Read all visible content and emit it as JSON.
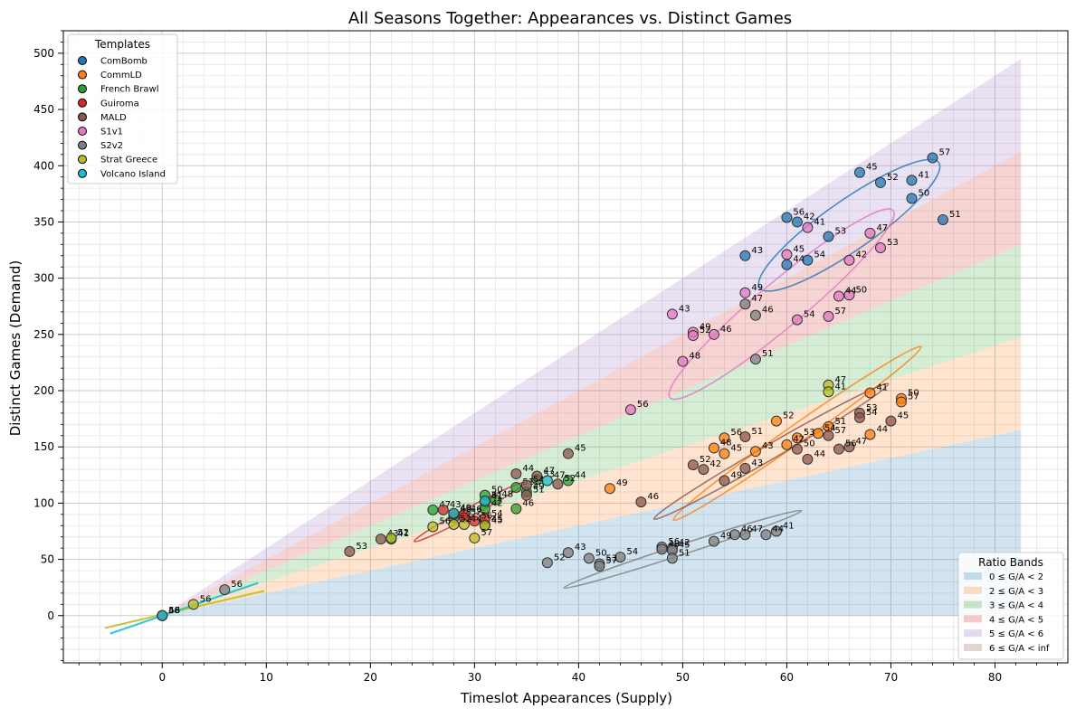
{
  "chart_data": {
    "type": "scatter",
    "title": "All Seasons Together: Appearances vs. Distinct Games",
    "xlabel": "Timeslot Appearances (Supply)",
    "ylabel": "Distinct Games (Demand)",
    "xlim": [
      -9.5,
      87
    ],
    "ylim": [
      -42,
      520
    ],
    "xticks": [
      0,
      10,
      20,
      30,
      40,
      50,
      60,
      70,
      80
    ],
    "yticks": [
      0,
      50,
      100,
      150,
      200,
      250,
      300,
      350,
      400,
      450,
      500
    ],
    "grid": true,
    "minor_grid": true,
    "legend_templates": {
      "title": "Templates",
      "placement": "top-left",
      "entries": [
        {
          "name": "ComBomb",
          "color": "#1f77b4"
        },
        {
          "name": "CommLD",
          "color": "#ff7f0e"
        },
        {
          "name": "French Brawl",
          "color": "#2ca02c"
        },
        {
          "name": "Guiroma",
          "color": "#d62728"
        },
        {
          "name": "MALD",
          "color": "#8c564b"
        },
        {
          "name": "S1v1",
          "color": "#e377c2"
        },
        {
          "name": "S2v2",
          "color": "#7f7f7f"
        },
        {
          "name": "Strat Greece",
          "color": "#bcbd22"
        },
        {
          "name": "Volcano Island",
          "color": "#17becf"
        }
      ]
    },
    "legend_bands": {
      "title": "Ratio Bands",
      "placement": "bottom-right",
      "entries": [
        {
          "label": "0 ≤ G/A < 2",
          "color": "#1f77b4"
        },
        {
          "label": "2 ≤ G/A < 3",
          "color": "#ff7f0e"
        },
        {
          "label": "3 ≤ G/A < 4",
          "color": "#2ca02c"
        },
        {
          "label": "4 ≤ G/A < 5",
          "color": "#d62728"
        },
        {
          "label": "5 ≤ G/A < 6",
          "color": "#9467bd"
        },
        {
          "label": "6 ≤ G/A < inf",
          "color": "#8c564b"
        }
      ]
    },
    "bands": {
      "x_max": 82.5,
      "ratios": [
        0,
        2,
        3,
        4,
        5,
        6
      ]
    },
    "series": [
      {
        "name": "ComBomb",
        "color": "#1f77b4",
        "points": [
          {
            "x": 74,
            "y": 407,
            "label": "57"
          },
          {
            "x": 67,
            "y": 394,
            "label": "45"
          },
          {
            "x": 69,
            "y": 385,
            "label": "52"
          },
          {
            "x": 72,
            "y": 387,
            "label": "41"
          },
          {
            "x": 72,
            "y": 371,
            "label": "50"
          },
          {
            "x": 75,
            "y": 352,
            "label": "51"
          },
          {
            "x": 60,
            "y": 354,
            "label": "56"
          },
          {
            "x": 61,
            "y": 350,
            "label": "42"
          },
          {
            "x": 64,
            "y": 337,
            "label": "53"
          },
          {
            "x": 56,
            "y": 320,
            "label": "43"
          },
          {
            "x": 62,
            "y": 316,
            "label": "54"
          },
          {
            "x": 60,
            "y": 312,
            "label": "44"
          },
          {
            "x": 0,
            "y": 0,
            "label": "48"
          }
        ]
      },
      {
        "name": "CommLD",
        "color": "#ff7f0e",
        "points": [
          {
            "x": 68,
            "y": 198,
            "label": "41"
          },
          {
            "x": 71,
            "y": 193,
            "label": "50"
          },
          {
            "x": 71,
            "y": 190,
            "label": "57"
          },
          {
            "x": 59,
            "y": 173,
            "label": "52"
          },
          {
            "x": 64,
            "y": 168,
            "label": "51"
          },
          {
            "x": 68,
            "y": 161,
            "label": "44"
          },
          {
            "x": 54,
            "y": 158,
            "label": "56"
          },
          {
            "x": 61,
            "y": 158,
            "label": "53"
          },
          {
            "x": 63,
            "y": 162,
            "label": "54"
          },
          {
            "x": 60,
            "y": 152,
            "label": "42"
          },
          {
            "x": 53,
            "y": 149,
            "label": "48"
          },
          {
            "x": 54,
            "y": 144,
            "label": "45"
          },
          {
            "x": 57,
            "y": 146,
            "label": "43"
          },
          {
            "x": 43,
            "y": 113,
            "label": "49"
          },
          {
            "x": 0,
            "y": 0,
            "label": "46"
          }
        ]
      },
      {
        "name": "French Brawl",
        "color": "#2ca02c",
        "points": [
          {
            "x": 36,
            "y": 121,
            "label": "53"
          },
          {
            "x": 39,
            "y": 120,
            "label": "44"
          },
          {
            "x": 34,
            "y": 114,
            "label": "51"
          },
          {
            "x": 35,
            "y": 110,
            "label": "49"
          },
          {
            "x": 31,
            "y": 107,
            "label": "50"
          },
          {
            "x": 32,
            "y": 103,
            "label": "48"
          },
          {
            "x": 31,
            "y": 101,
            "label": "41"
          },
          {
            "x": 26,
            "y": 94,
            "label": "47"
          },
          {
            "x": 31,
            "y": 95,
            "label": "42"
          },
          {
            "x": 34,
            "y": 95,
            "label": "46"
          },
          {
            "x": 28,
            "y": 87,
            "label": "48"
          },
          {
            "x": 31,
            "y": 81,
            "label": "45"
          },
          {
            "x": 22,
            "y": 68,
            "label": "41"
          }
        ]
      },
      {
        "name": "Guiroma",
        "color": "#d62728",
        "points": [
          {
            "x": 27,
            "y": 94,
            "label": "43"
          },
          {
            "x": 29,
            "y": 90,
            "label": "46"
          },
          {
            "x": 29,
            "y": 87,
            "label": "52"
          },
          {
            "x": 31,
            "y": 86,
            "label": "54"
          },
          {
            "x": 30,
            "y": 84,
            "label": "56"
          },
          {
            "x": 28,
            "y": 90,
            "label": "49"
          }
        ]
      },
      {
        "name": "MALD",
        "color": "#8c564b",
        "points": [
          {
            "x": 34,
            "y": 126,
            "label": "44"
          },
          {
            "x": 36,
            "y": 124,
            "label": "47"
          },
          {
            "x": 39,
            "y": 144,
            "label": "45"
          },
          {
            "x": 38,
            "y": 117,
            "label": "52"
          },
          {
            "x": 35,
            "y": 116,
            "label": "54"
          },
          {
            "x": 35,
            "y": 107,
            "label": "51"
          },
          {
            "x": 46,
            "y": 101,
            "label": "46"
          },
          {
            "x": 21,
            "y": 68,
            "label": "43"
          },
          {
            "x": 18,
            "y": 57,
            "label": "53"
          },
          {
            "x": 67,
            "y": 180,
            "label": "53"
          },
          {
            "x": 67,
            "y": 176,
            "label": "54"
          },
          {
            "x": 70,
            "y": 173,
            "label": "45"
          },
          {
            "x": 56,
            "y": 159,
            "label": "51"
          },
          {
            "x": 64,
            "y": 160,
            "label": "57"
          },
          {
            "x": 61,
            "y": 148,
            "label": "50"
          },
          {
            "x": 62,
            "y": 139,
            "label": "44"
          },
          {
            "x": 65,
            "y": 148,
            "label": "56"
          },
          {
            "x": 66,
            "y": 150,
            "label": "47"
          },
          {
            "x": 51,
            "y": 134,
            "label": "52"
          },
          {
            "x": 52,
            "y": 130,
            "label": "42"
          },
          {
            "x": 56,
            "y": 131,
            "label": "43"
          },
          {
            "x": 54,
            "y": 120,
            "label": "49"
          },
          {
            "x": 0,
            "y": 0,
            "label": "56"
          }
        ]
      },
      {
        "name": "S1v1",
        "color": "#e377c2",
        "points": [
          {
            "x": 62,
            "y": 345,
            "label": "41"
          },
          {
            "x": 68,
            "y": 340,
            "label": "47"
          },
          {
            "x": 69,
            "y": 327,
            "label": "53"
          },
          {
            "x": 60,
            "y": 321,
            "label": "45"
          },
          {
            "x": 66,
            "y": 316,
            "label": "42"
          },
          {
            "x": 56,
            "y": 287,
            "label": "49"
          },
          {
            "x": 65,
            "y": 284,
            "label": "44"
          },
          {
            "x": 66,
            "y": 285,
            "label": "50"
          },
          {
            "x": 61,
            "y": 263,
            "label": "54"
          },
          {
            "x": 64,
            "y": 266,
            "label": "57"
          },
          {
            "x": 49,
            "y": 268,
            "label": "43"
          },
          {
            "x": 51,
            "y": 252,
            "label": "49"
          },
          {
            "x": 51,
            "y": 249,
            "label": "52"
          },
          {
            "x": 53,
            "y": 250,
            "label": "46"
          },
          {
            "x": 50,
            "y": 226,
            "label": "48"
          },
          {
            "x": 45,
            "y": 183,
            "label": "56"
          }
        ]
      },
      {
        "name": "S2v2",
        "color": "#7f7f7f",
        "points": [
          {
            "x": 56,
            "y": 277,
            "label": "47"
          },
          {
            "x": 57,
            "y": 267,
            "label": "46"
          },
          {
            "x": 57,
            "y": 228,
            "label": "51"
          },
          {
            "x": 59,
            "y": 75,
            "label": "41"
          },
          {
            "x": 58,
            "y": 72,
            "label": "44"
          },
          {
            "x": 55,
            "y": 72,
            "label": "46"
          },
          {
            "x": 56,
            "y": 72,
            "label": "47"
          },
          {
            "x": 53,
            "y": 66,
            "label": "49"
          },
          {
            "x": 48,
            "y": 61,
            "label": "56"
          },
          {
            "x": 49,
            "y": 60,
            "label": "42"
          },
          {
            "x": 48,
            "y": 59,
            "label": "48"
          },
          {
            "x": 49,
            "y": 58,
            "label": "45"
          },
          {
            "x": 49,
            "y": 51,
            "label": "51"
          },
          {
            "x": 44,
            "y": 52,
            "label": "54"
          },
          {
            "x": 39,
            "y": 56,
            "label": "43"
          },
          {
            "x": 41,
            "y": 51,
            "label": "50"
          },
          {
            "x": 37,
            "y": 47,
            "label": "52"
          },
          {
            "x": 42,
            "y": 46,
            "label": "53"
          },
          {
            "x": 42,
            "y": 44,
            "label": "57"
          },
          {
            "x": 6,
            "y": 23,
            "label": "56"
          },
          {
            "x": 0,
            "y": 0,
            "label": "48"
          }
        ]
      },
      {
        "name": "Strat Greece",
        "color": "#bcbd22",
        "points": [
          {
            "x": 64,
            "y": 205,
            "label": "47"
          },
          {
            "x": 64,
            "y": 199,
            "label": "41"
          },
          {
            "x": 30,
            "y": 69,
            "label": "57"
          },
          {
            "x": 26,
            "y": 79,
            "label": "56"
          },
          {
            "x": 28,
            "y": 81,
            "label": "52"
          },
          {
            "x": 29,
            "y": 81,
            "label": "44"
          },
          {
            "x": 31,
            "y": 80,
            "label": "45"
          },
          {
            "x": 22,
            "y": 69,
            "label": "52"
          },
          {
            "x": 3,
            "y": 10,
            "label": "56"
          }
        ]
      },
      {
        "name": "Volcano Island",
        "color": "#17becf",
        "points": [
          {
            "x": 37,
            "y": 120,
            "label": "47"
          },
          {
            "x": 31,
            "y": 102,
            "label": "51"
          },
          {
            "x": 28,
            "y": 91,
            "label": "49"
          },
          {
            "x": 0,
            "y": 0,
            "label": "56"
          }
        ]
      }
    ],
    "ellipses": [
      {
        "series": "ComBomb",
        "color": "#1f77b4",
        "cx": 66,
        "cy": 347,
        "rx": 10.5,
        "ry": 22,
        "rot": -35
      },
      {
        "series": "S1v1",
        "color": "#e377c2",
        "cx": 59.5,
        "cy": 277,
        "rx": 14,
        "ry": 20,
        "rot": -40
      },
      {
        "series": "CommLD",
        "color": "#ff7f0e",
        "cx": 61,
        "cy": 162,
        "rx": 14.5,
        "ry": 8,
        "rot": -35
      },
      {
        "series": "MALD",
        "color": "#8c564b",
        "cx": 58.5,
        "cy": 146,
        "rx": 13,
        "ry": 6.5,
        "rot": -30
      },
      {
        "series": "S2v2",
        "color": "#7f7f7f",
        "cx": 50,
        "cy": 59,
        "rx": 12,
        "ry": 4.5,
        "rot": -18
      },
      {
        "series": "Guiroma",
        "color": "#d62728",
        "cx": 29.5,
        "cy": 92,
        "rx": 6,
        "ry": 4,
        "rot": -28
      }
    ],
    "trend_lines": [
      {
        "series": "Strat Greece",
        "color": "#bcbd22",
        "x1": -5.5,
        "y1": -11,
        "x2": 9.8,
        "y2": 22
      },
      {
        "series": "Volcano Island",
        "color": "#17becf",
        "x1": -5,
        "y1": -16,
        "x2": 9.2,
        "y2": 29
      }
    ]
  }
}
